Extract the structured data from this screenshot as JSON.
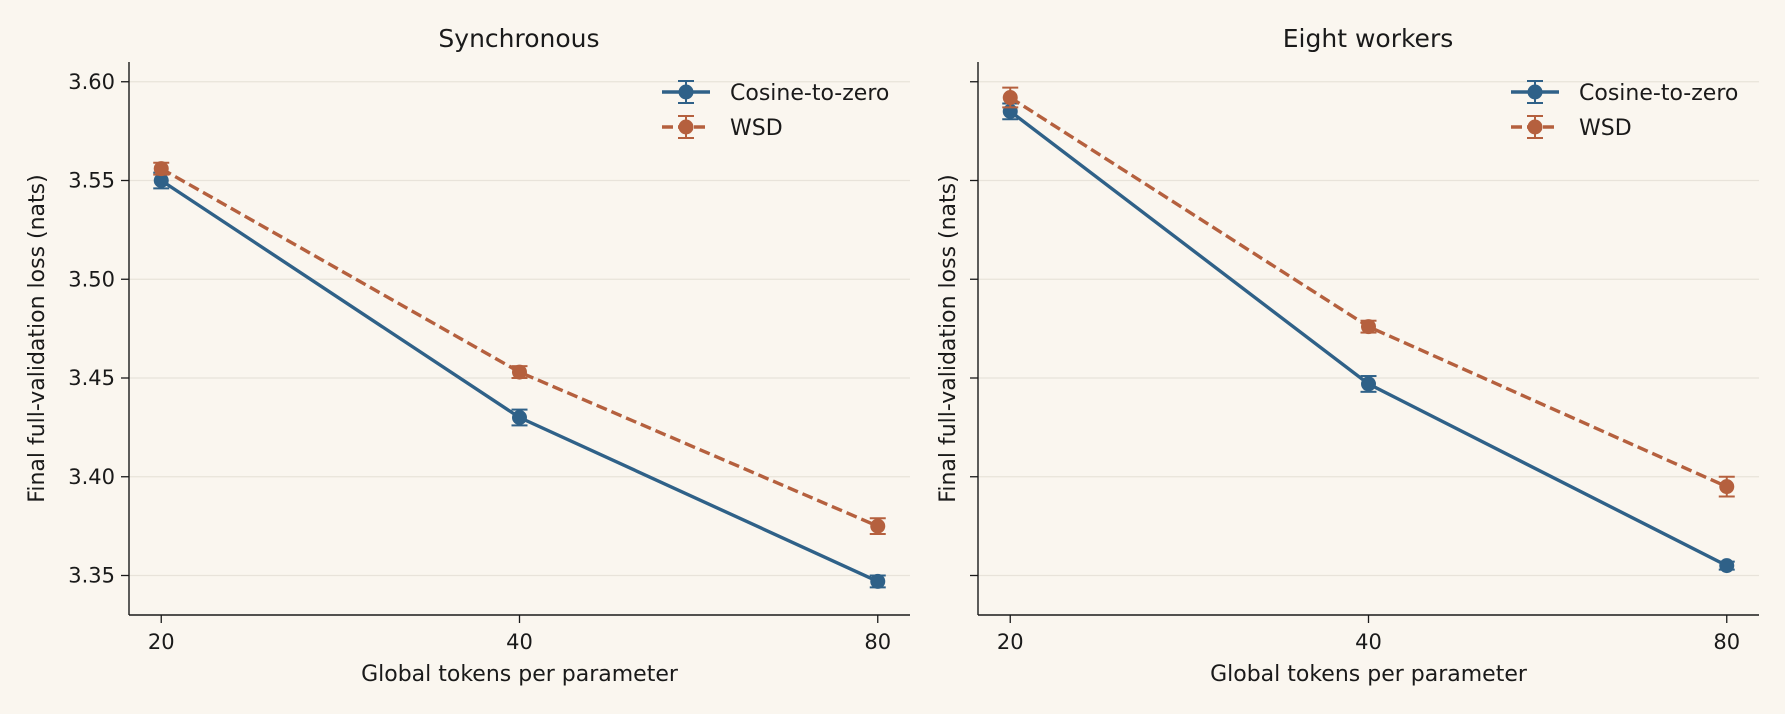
{
  "colors": {
    "background": "#faf6ef",
    "cosine": "#2f6188",
    "wsd": "#b5603e",
    "grid": "#e8e3da",
    "axis": "#1a1a1a"
  },
  "chart_data": [
    {
      "type": "line",
      "title": "Synchronous",
      "xlabel": "Global tokens per parameter",
      "ylabel": "Final full-validation loss (nats)",
      "x": [
        20,
        40,
        80
      ],
      "x_scale": "log2",
      "xticks": [
        "20",
        "40",
        "80"
      ],
      "ylim": [
        3.33,
        3.61
      ],
      "yticks": [
        "3.35",
        "3.40",
        "3.45",
        "3.50",
        "3.55",
        "3.60"
      ],
      "grid": "horizontal",
      "legend": "top-right",
      "series": [
        {
          "name": "Cosine-to-zero",
          "style": "solid",
          "values": [
            3.55,
            3.43,
            3.347
          ],
          "errors": [
            0.004,
            0.004,
            0.003
          ]
        },
        {
          "name": "WSD",
          "style": "dashed",
          "values": [
            3.556,
            3.453,
            3.375
          ],
          "errors": [
            0.003,
            0.003,
            0.004
          ]
        }
      ]
    },
    {
      "type": "line",
      "title": "Eight workers",
      "xlabel": "Global tokens per parameter",
      "ylabel": "Final full-validation loss (nats)",
      "x": [
        20,
        40,
        80
      ],
      "x_scale": "log2",
      "xticks": [
        "20",
        "40",
        "80"
      ],
      "ylim": [
        3.33,
        3.61
      ],
      "yticks": [
        "3.35",
        "3.40",
        "3.45",
        "3.50",
        "3.55",
        "3.60"
      ],
      "grid": "horizontal",
      "legend": "top-right",
      "series": [
        {
          "name": "Cosine-to-zero",
          "style": "solid",
          "values": [
            3.585,
            3.447,
            3.355
          ],
          "errors": [
            0.004,
            0.004,
            0.002
          ]
        },
        {
          "name": "WSD",
          "style": "dashed",
          "values": [
            3.592,
            3.476,
            3.395
          ],
          "errors": [
            0.005,
            0.003,
            0.005
          ]
        }
      ]
    }
  ]
}
